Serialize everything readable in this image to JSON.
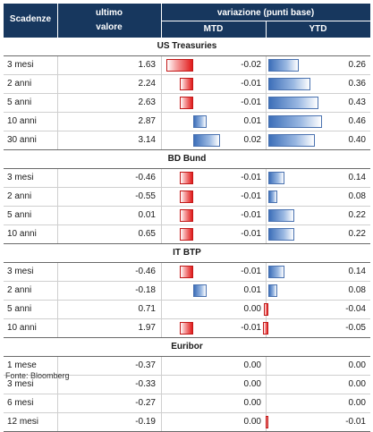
{
  "header": {
    "scadenze": "Scadenze",
    "ultimo_line1": "ultimo",
    "ultimo_line2": "valore",
    "variazione": "variazione (punti base)",
    "mtd": "MTD",
    "ytd": "YTD"
  },
  "sections": [
    {
      "title": "US Treasuries",
      "rows": [
        {
          "scadenza": "3 mesi",
          "valore": "1.63",
          "mtd": "-0.02",
          "ytd": "0.26",
          "mtd_v": -0.02,
          "ytd_v": 0.26
        },
        {
          "scadenza": "2 anni",
          "valore": "2.24",
          "mtd": "-0.01",
          "ytd": "0.36",
          "mtd_v": -0.01,
          "ytd_v": 0.36
        },
        {
          "scadenza": "5 anni",
          "valore": "2.63",
          "mtd": "-0.01",
          "ytd": "0.43",
          "mtd_v": -0.01,
          "ytd_v": 0.43
        },
        {
          "scadenza": "10 anni",
          "valore": "2.87",
          "mtd": "0.01",
          "ytd": "0.46",
          "mtd_v": 0.01,
          "ytd_v": 0.46
        },
        {
          "scadenza": "30 anni",
          "valore": "3.14",
          "mtd": "0.02",
          "ytd": "0.40",
          "mtd_v": 0.02,
          "ytd_v": 0.4
        }
      ]
    },
    {
      "title": "BD Bund",
      "rows": [
        {
          "scadenza": "3 mesi",
          "valore": "-0.46",
          "mtd": "-0.01",
          "ytd": "0.14",
          "mtd_v": -0.01,
          "ytd_v": 0.14
        },
        {
          "scadenza": "2 anni",
          "valore": "-0.55",
          "mtd": "-0.01",
          "ytd": "0.08",
          "mtd_v": -0.01,
          "ytd_v": 0.08
        },
        {
          "scadenza": "5 anni",
          "valore": "0.01",
          "mtd": "-0.01",
          "ytd": "0.22",
          "mtd_v": -0.01,
          "ytd_v": 0.22
        },
        {
          "scadenza": "10 anni",
          "valore": "0.65",
          "mtd": "-0.01",
          "ytd": "0.22",
          "mtd_v": -0.01,
          "ytd_v": 0.22
        }
      ]
    },
    {
      "title": "IT BTP",
      "rows": [
        {
          "scadenza": "3 mesi",
          "valore": "-0.46",
          "mtd": "-0.01",
          "ytd": "0.14",
          "mtd_v": -0.01,
          "ytd_v": 0.14
        },
        {
          "scadenza": "2 anni",
          "valore": "-0.18",
          "mtd": "0.01",
          "ytd": "0.08",
          "mtd_v": 0.01,
          "ytd_v": 0.08
        },
        {
          "scadenza": "5 anni",
          "valore": "0.71",
          "mtd": "0.00",
          "ytd": "-0.04",
          "mtd_v": 0.0,
          "ytd_v": -0.04
        },
        {
          "scadenza": "10 anni",
          "valore": "1.97",
          "mtd": "-0.01",
          "ytd": "-0.05",
          "mtd_v": -0.01,
          "ytd_v": -0.05
        }
      ]
    },
    {
      "title": "Euribor",
      "rows": [
        {
          "scadenza": "1 mese",
          "valore": "-0.37",
          "mtd": "0.00",
          "ytd": "0.00",
          "mtd_v": 0.0,
          "ytd_v": 0.0
        },
        {
          "scadenza": "3 mesi",
          "valore": "-0.33",
          "mtd": "0.00",
          "ytd": "0.00",
          "mtd_v": 0.0,
          "ytd_v": 0.0
        },
        {
          "scadenza": "6 mesi",
          "valore": "-0.27",
          "mtd": "0.00",
          "ytd": "0.00",
          "mtd_v": 0.0,
          "ytd_v": 0.0
        },
        {
          "scadenza": "12 mesi",
          "valore": "-0.19",
          "mtd": "0.00",
          "ytd": "-0.01",
          "mtd_v": 0.0,
          "ytd_v": -0.01
        }
      ]
    }
  ],
  "source": "Fonte: Bloomberg",
  "colors": {
    "header_bg": "#17375e",
    "negative_bar": "#e11b1b",
    "positive_bar": "#3d6fb9"
  }
}
